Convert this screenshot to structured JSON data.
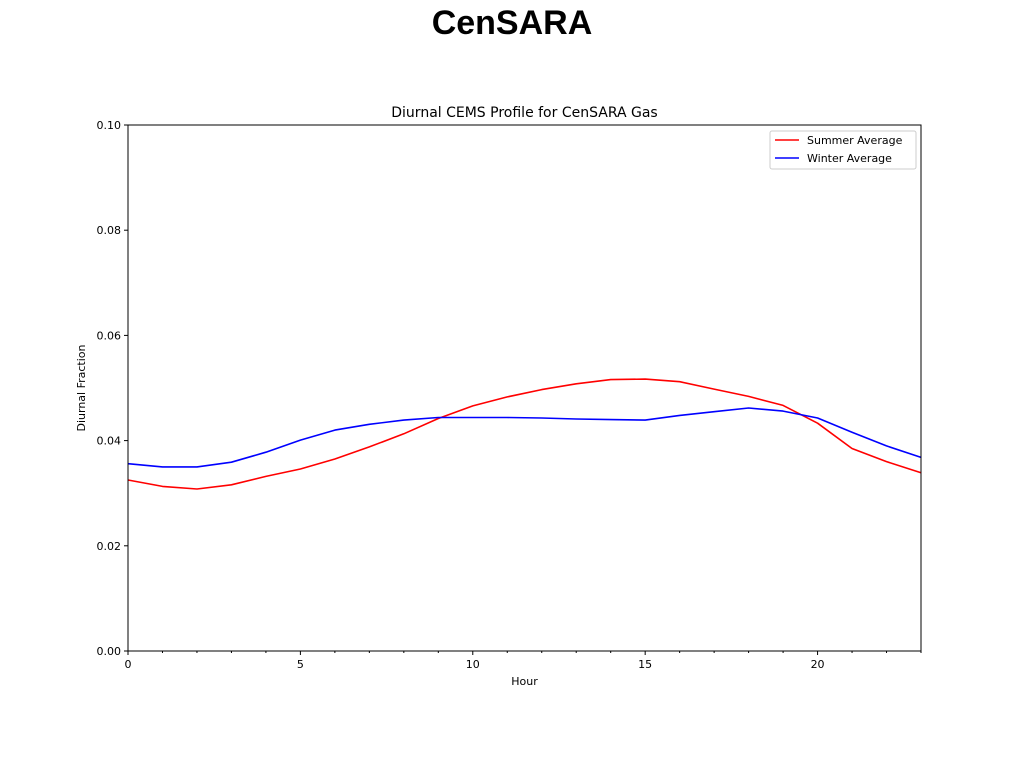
{
  "slide": {
    "title": "CenSARA"
  },
  "chart_data": {
    "type": "line",
    "title": "Diurnal CEMS Profile for CenSARA Gas",
    "xlabel": "Hour",
    "ylabel": "Diurnal Fraction",
    "xlim": [
      0,
      23
    ],
    "ylim": [
      0,
      0.1
    ],
    "xticks": [
      0,
      5,
      10,
      15,
      20
    ],
    "yticks": [
      0.0,
      0.02,
      0.04,
      0.06,
      0.08,
      0.1
    ],
    "ytick_labels": [
      "0.00",
      "0.02",
      "0.04",
      "0.06",
      "0.08",
      "0.10"
    ],
    "grid": false,
    "legend_position": "top-right",
    "x": [
      0,
      1,
      2,
      3,
      4,
      5,
      6,
      7,
      8,
      9,
      10,
      11,
      12,
      13,
      14,
      15,
      16,
      17,
      18,
      19,
      20,
      21,
      22,
      23
    ],
    "series": [
      {
        "name": "Summer Average",
        "color": "#ff0000",
        "values": [
          0.0325,
          0.0313,
          0.0308,
          0.0316,
          0.0332,
          0.0346,
          0.0365,
          0.0388,
          0.0413,
          0.0442,
          0.0466,
          0.0483,
          0.0497,
          0.0508,
          0.0516,
          0.0517,
          0.0512,
          0.0498,
          0.0484,
          0.0467,
          0.0433,
          0.0385,
          0.036,
          0.0339
        ]
      },
      {
        "name": "Winter Average",
        "color": "#0000ff",
        "values": [
          0.0356,
          0.035,
          0.035,
          0.0359,
          0.0378,
          0.0401,
          0.042,
          0.0431,
          0.0439,
          0.0444,
          0.0444,
          0.0444,
          0.0443,
          0.0441,
          0.044,
          0.0439,
          0.0448,
          0.0455,
          0.0462,
          0.0456,
          0.0443,
          0.0416,
          0.039,
          0.0368
        ]
      }
    ]
  }
}
